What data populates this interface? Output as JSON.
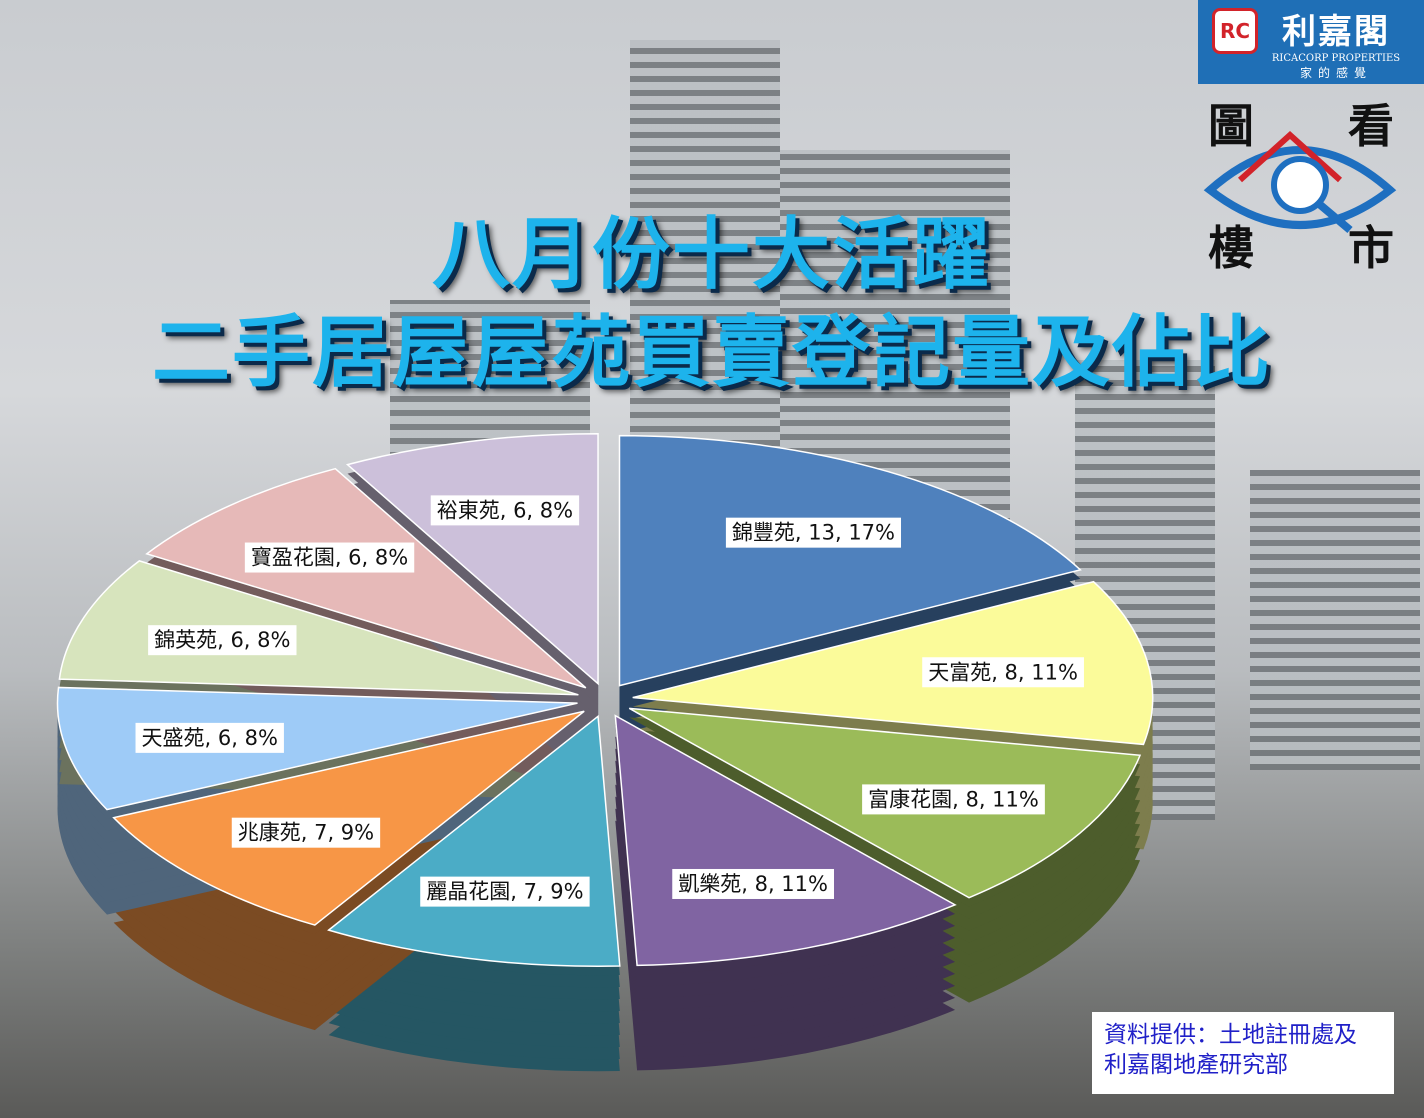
{
  "title_lines": [
    "八月份十大活躍",
    "二手居屋屋苑買賣登記量及佔比"
  ],
  "logo": {
    "name_cn": "利嘉閣",
    "name_en": "RICACORP PROPERTIES",
    "slogan": "家的感覺",
    "mark": "RC"
  },
  "badge": {
    "chars": [
      "圖",
      "看",
      "樓",
      "市"
    ]
  },
  "source": {
    "line1": "資料提供：土地註冊處及",
    "line2": "利嘉閣地產研究部"
  },
  "chart_data": {
    "type": "pie",
    "title": "八月份十大活躍二手居屋屋苑買賣登記量及佔比",
    "start": "12 o'clock, clockwise",
    "style": "3D exploded",
    "slices": [
      {
        "label": "錦豐苑",
        "value": 13,
        "percent": 17,
        "color": "#4f81bd",
        "text": "錦豐苑, 13, 17%"
      },
      {
        "label": "天富苑",
        "value": 8,
        "percent": 11,
        "color": "#fbfb9a",
        "text": "天富苑, 8, 11%"
      },
      {
        "label": "富康花園",
        "value": 8,
        "percent": 11,
        "color": "#9bbb59",
        "text": "富康花園, 8, 11%"
      },
      {
        "label": "凱樂苑",
        "value": 8,
        "percent": 11,
        "color": "#8064a2",
        "text": "凱樂苑, 8, 11%"
      },
      {
        "label": "麗晶花園",
        "value": 7,
        "percent": 9,
        "color": "#4bacc6",
        "text": "麗晶花園, 7, 9%"
      },
      {
        "label": "兆康苑",
        "value": 7,
        "percent": 9,
        "color": "#f79646",
        "text": "兆康苑, 7, 9%"
      },
      {
        "label": "天盛苑",
        "value": 6,
        "percent": 8,
        "color": "#9ecbf7",
        "text": "天盛苑, 6, 8%"
      },
      {
        "label": "錦英苑",
        "value": 6,
        "percent": 8,
        "color": "#d7e4bd",
        "text": "錦英苑, 6, 8%"
      },
      {
        "label": "寶盈花園",
        "value": 6,
        "percent": 8,
        "color": "#e6b9b8",
        "text": "寶盈花園, 6, 8%"
      },
      {
        "label": "裕東苑",
        "value": 6,
        "percent": 8,
        "color": "#ccc0da",
        "text": "裕東苑, 6, 8%"
      }
    ]
  }
}
